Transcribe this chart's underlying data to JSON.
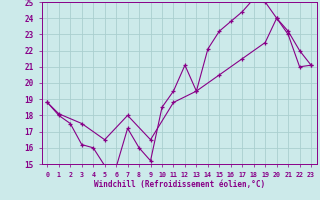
{
  "title": "",
  "xlabel": "Windchill (Refroidissement éolien,°C)",
  "background_color": "#cceaea",
  "grid_color": "#aacfcf",
  "line_color": "#880088",
  "xlim": [
    -0.5,
    23.5
  ],
  "ylim": [
    15,
    25
  ],
  "xticks": [
    0,
    1,
    2,
    3,
    4,
    5,
    6,
    7,
    8,
    9,
    10,
    11,
    12,
    13,
    14,
    15,
    16,
    17,
    18,
    19,
    20,
    21,
    22,
    23
  ],
  "yticks": [
    15,
    16,
    17,
    18,
    19,
    20,
    21,
    22,
    23,
    24,
    25
  ],
  "curve1_x": [
    0,
    1,
    2,
    3,
    4,
    5,
    6,
    7,
    8,
    9,
    10,
    11,
    12,
    13,
    14,
    15,
    16,
    17,
    18,
    19,
    20,
    21,
    22,
    23
  ],
  "curve1_y": [
    18.8,
    18.0,
    17.5,
    16.2,
    16.0,
    14.9,
    14.8,
    17.2,
    16.0,
    15.2,
    18.5,
    19.5,
    21.1,
    19.5,
    22.1,
    23.2,
    23.8,
    24.4,
    25.2,
    25.0,
    24.0,
    23.2,
    22.0,
    21.1
  ],
  "curve2_x": [
    0,
    1,
    3,
    5,
    7,
    9,
    11,
    13,
    15,
    17,
    19,
    20,
    21,
    22,
    23
  ],
  "curve2_y": [
    18.8,
    18.1,
    17.5,
    16.5,
    18.0,
    16.5,
    18.8,
    19.5,
    20.5,
    21.5,
    22.5,
    24.0,
    23.0,
    21.0,
    21.1
  ]
}
